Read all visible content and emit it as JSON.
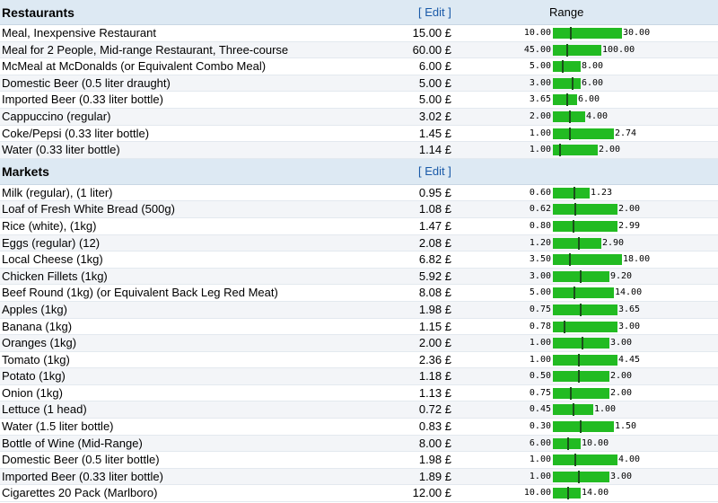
{
  "sections": [
    {
      "title": "Restaurants",
      "edit_label": "[ Edit ]",
      "range_label": "Range",
      "items": [
        {
          "name": "Meal, Inexpensive Restaurant",
          "price": "15.00 £",
          "min": "10.00",
          "max": "30.00",
          "bar_fraction": 0.85,
          "mark_fraction": 0.25
        },
        {
          "name": "Meal for 2 People, Mid-range Restaurant, Three-course",
          "price": "60.00 £",
          "min": "45.00",
          "max": "100.00",
          "bar_fraction": 0.6,
          "mark_fraction": 0.27
        },
        {
          "name": "McMeal at McDonalds (or Equivalent Combo Meal)",
          "price": "6.00 £",
          "min": "5.00",
          "max": "8.00",
          "bar_fraction": 0.35,
          "mark_fraction": 0.33
        },
        {
          "name": "Domestic Beer (0.5 liter draught)",
          "price": "5.00 £",
          "min": "3.00",
          "max": "6.00",
          "bar_fraction": 0.35,
          "mark_fraction": 0.67
        },
        {
          "name": "Imported Beer (0.33 liter bottle)",
          "price": "5.00 £",
          "min": "3.65",
          "max": "6.00",
          "bar_fraction": 0.3,
          "mark_fraction": 0.57
        },
        {
          "name": "Cappuccino (regular)",
          "price": "3.02 £",
          "min": "2.00",
          "max": "4.00",
          "bar_fraction": 0.4,
          "mark_fraction": 0.51
        },
        {
          "name": "Coke/Pepsi (0.33 liter bottle)",
          "price": "1.45 £",
          "min": "1.00",
          "max": "2.74",
          "bar_fraction": 0.75,
          "mark_fraction": 0.26
        },
        {
          "name": "Water (0.33 liter bottle)",
          "price": "1.14 £",
          "min": "1.00",
          "max": "2.00",
          "bar_fraction": 0.55,
          "mark_fraction": 0.14
        }
      ]
    },
    {
      "title": "Markets",
      "edit_label": "[ Edit ]",
      "range_label": "",
      "items": [
        {
          "name": "Milk (regular), (1 liter)",
          "price": "0.95 £",
          "min": "0.60",
          "max": "1.23",
          "bar_fraction": 0.45,
          "mark_fraction": 0.56
        },
        {
          "name": "Loaf of Fresh White Bread (500g)",
          "price": "1.08 £",
          "min": "0.62",
          "max": "2.00",
          "bar_fraction": 0.8,
          "mark_fraction": 0.33
        },
        {
          "name": "Rice (white), (1kg)",
          "price": "1.47 £",
          "min": "0.80",
          "max": "2.99",
          "bar_fraction": 0.8,
          "mark_fraction": 0.31
        },
        {
          "name": "Eggs (regular) (12)",
          "price": "2.08 £",
          "min": "1.20",
          "max": "2.90",
          "bar_fraction": 0.6,
          "mark_fraction": 0.52
        },
        {
          "name": "Local Cheese (1kg)",
          "price": "6.82 £",
          "min": "3.50",
          "max": "18.00",
          "bar_fraction": 0.85,
          "mark_fraction": 0.23
        },
        {
          "name": "Chicken Fillets (1kg)",
          "price": "5.92 £",
          "min": "3.00",
          "max": "9.20",
          "bar_fraction": 0.7,
          "mark_fraction": 0.47
        },
        {
          "name": "Beef Round (1kg) (or Equivalent Back Leg Red Meat)",
          "price": "8.08 £",
          "min": "5.00",
          "max": "14.00",
          "bar_fraction": 0.75,
          "mark_fraction": 0.34
        },
        {
          "name": "Apples (1kg)",
          "price": "1.98 £",
          "min": "0.75",
          "max": "3.65",
          "bar_fraction": 0.8,
          "mark_fraction": 0.42
        },
        {
          "name": "Banana (1kg)",
          "price": "1.15 £",
          "min": "0.78",
          "max": "3.00",
          "bar_fraction": 0.8,
          "mark_fraction": 0.17
        },
        {
          "name": "Oranges (1kg)",
          "price": "2.00 £",
          "min": "1.00",
          "max": "3.00",
          "bar_fraction": 0.7,
          "mark_fraction": 0.5
        },
        {
          "name": "Tomato (1kg)",
          "price": "2.36 £",
          "min": "1.00",
          "max": "4.45",
          "bar_fraction": 0.8,
          "mark_fraction": 0.39
        },
        {
          "name": "Potato (1kg)",
          "price": "1.18 £",
          "min": "0.50",
          "max": "2.00",
          "bar_fraction": 0.7,
          "mark_fraction": 0.45
        },
        {
          "name": "Onion (1kg)",
          "price": "1.13 £",
          "min": "0.75",
          "max": "2.00",
          "bar_fraction": 0.7,
          "mark_fraction": 0.3
        },
        {
          "name": "Lettuce (1 head)",
          "price": "0.72 £",
          "min": "0.45",
          "max": "1.00",
          "bar_fraction": 0.5,
          "mark_fraction": 0.49
        },
        {
          "name": "Water (1.5 liter bottle)",
          "price": "0.83 £",
          "min": "0.30",
          "max": "1.50",
          "bar_fraction": 0.75,
          "mark_fraction": 0.44
        },
        {
          "name": "Bottle of Wine (Mid-Range)",
          "price": "8.00 £",
          "min": "6.00",
          "max": "10.00",
          "bar_fraction": 0.35,
          "mark_fraction": 0.5
        },
        {
          "name": "Domestic Beer (0.5 liter bottle)",
          "price": "1.98 £",
          "min": "1.00",
          "max": "4.00",
          "bar_fraction": 0.8,
          "mark_fraction": 0.33
        },
        {
          "name": "Imported Beer (0.33 liter bottle)",
          "price": "1.89 £",
          "min": "1.00",
          "max": "3.00",
          "bar_fraction": 0.7,
          "mark_fraction": 0.45
        },
        {
          "name": "Cigarettes 20 Pack (Marlboro)",
          "price": "12.00 £",
          "min": "10.00",
          "max": "14.00",
          "bar_fraction": 0.35,
          "mark_fraction": 0.5
        }
      ]
    }
  ],
  "colors": {
    "bar": "#22bb22",
    "marker": "#1a4f1a",
    "header_bg": "#dde9f3",
    "link": "#1a5aa8"
  }
}
